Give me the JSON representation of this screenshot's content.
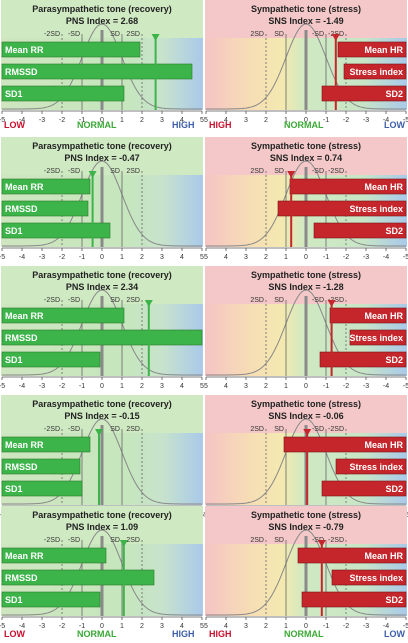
{
  "colors": {
    "pns_bg": "#cfe9c2",
    "sns_bg": "#f4c8c8",
    "bar_green": "#3cb44a",
    "bar_red": "#c4262b",
    "marker_green": "#3cb44a",
    "marker_red": "#c4262b",
    "curve": "#888888",
    "axis": "#555555"
  },
  "legend": {
    "left": {
      "low": "LOW",
      "normal": "NORMAL",
      "high": "HIGH"
    },
    "right": {
      "high": "HIGH",
      "normal": "NORMAL",
      "low": "LOW"
    }
  },
  "sd_labels": {
    "left": [
      "-2SD",
      "-SD",
      "SD",
      "2SD"
    ],
    "right": [
      "2SD",
      "SD",
      "-SD",
      "-2SD"
    ]
  },
  "chart_data": [
    {
      "type": "bar",
      "panel": "PNS",
      "title": "Parasympathetic tone (recovery)",
      "index_label": "PNS Index = 2.68",
      "index": 2.68,
      "categories": [
        "Mean RR",
        "RMSSD",
        "SD1"
      ],
      "values": [
        1.9,
        4.5,
        1.1
      ],
      "xlim": [
        -5,
        5
      ],
      "xticks": [
        -5,
        -4,
        -3,
        -2,
        -1,
        0,
        1,
        2,
        3,
        4,
        5
      ]
    },
    {
      "type": "bar",
      "panel": "SNS",
      "title": "Sympathetic tone (stress)",
      "index_label": "SNS Index = -1.49",
      "index": -1.49,
      "categories": [
        "Mean HR",
        "Stress index",
        "SD2"
      ],
      "values": [
        -1.6,
        -1.9,
        -0.8
      ],
      "xlim": [
        -5,
        5
      ],
      "xticks": [
        5,
        4,
        3,
        2,
        1,
        0,
        -1,
        -2,
        -3,
        -4,
        -5
      ]
    },
    {
      "type": "bar",
      "panel": "PNS",
      "title": "Parasympathetic tone (recovery)",
      "index_label": "PNS Index = -0.47",
      "index": -0.47,
      "categories": [
        "Mean RR",
        "RMSSD",
        "SD1"
      ],
      "values": [
        -0.6,
        -0.7,
        0.4
      ],
      "xlim": [
        -5,
        5
      ],
      "xticks": [
        -5,
        -4,
        -3,
        -2,
        -1,
        0,
        1,
        2,
        3,
        4,
        5
      ]
    },
    {
      "type": "bar",
      "panel": "SNS",
      "title": "Sympathetic tone (stress)",
      "index_label": "SNS Index = 0.74",
      "index": 0.74,
      "categories": [
        "Mean HR",
        "Stress index",
        "SD2"
      ],
      "values": [
        0.8,
        1.4,
        -0.4
      ],
      "xlim": [
        -5,
        5
      ],
      "xticks": [
        5,
        4,
        3,
        2,
        1,
        0,
        -1,
        -2,
        -3,
        -4,
        -5
      ]
    },
    {
      "type": "bar",
      "panel": "PNS",
      "title": "Parasympathetic tone (recovery)",
      "index_label": "PNS Index = 2.34",
      "index": 2.34,
      "categories": [
        "Mean RR",
        "RMSSD",
        "SD1"
      ],
      "values": [
        1.1,
        5.0,
        -0.1
      ],
      "xlim": [
        -5,
        5
      ],
      "xticks": [
        -5,
        -4,
        -3,
        -2,
        -1,
        0,
        1,
        2,
        3,
        4,
        5
      ]
    },
    {
      "type": "bar",
      "panel": "SNS",
      "title": "Sympathetic tone (stress)",
      "index_label": "SNS Index = -1.28",
      "index": -1.28,
      "categories": [
        "Mean HR",
        "Stress index",
        "SD2"
      ],
      "values": [
        -1.2,
        -2.2,
        -0.7
      ],
      "xlim": [
        -5,
        5
      ],
      "xticks": [
        5,
        4,
        3,
        2,
        1,
        0,
        -1,
        -2,
        -3,
        -4,
        -5
      ]
    },
    {
      "type": "bar",
      "panel": "PNS",
      "title": "Parasympathetic tone (recovery)",
      "index_label": "PNS Index = -0.15",
      "index": -0.15,
      "categories": [
        "Mean RR",
        "RMSSD",
        "SD1"
      ],
      "values": [
        -0.6,
        -1.1,
        -1.0
      ],
      "xlim": [
        -5,
        5
      ],
      "xticks": [
        -5,
        -4,
        -3,
        -2,
        -1,
        0,
        1,
        2,
        3,
        4,
        5
      ]
    },
    {
      "type": "bar",
      "panel": "SNS",
      "title": "Sympathetic tone (stress)",
      "index_label": "SNS Index = -0.06",
      "index": -0.06,
      "categories": [
        "Mean HR",
        "Stress index",
        "SD2"
      ],
      "values": [
        1.1,
        -1.5,
        -0.8
      ],
      "xlim": [
        -5,
        5
      ],
      "xticks": [
        5,
        4,
        3,
        2,
        1,
        0,
        -1,
        -2,
        -3,
        -4,
        -5
      ]
    },
    {
      "type": "bar",
      "panel": "PNS",
      "title": "Parasympathetic tone (recovery)",
      "index_label": "PNS Index = 1.09",
      "index": 1.09,
      "categories": [
        "Mean RR",
        "RMSSD",
        "SD1"
      ],
      "values": [
        0.2,
        2.6,
        -0.1
      ],
      "xlim": [
        -5,
        5
      ],
      "xticks": [
        -5,
        -4,
        -3,
        -2,
        -1,
        0,
        1,
        2,
        3,
        4,
        5
      ]
    },
    {
      "type": "bar",
      "panel": "SNS",
      "title": "Sympathetic tone (stress)",
      "index_label": "SNS Index = -0.79",
      "index": -0.79,
      "categories": [
        "Mean HR",
        "Stress index",
        "SD2"
      ],
      "values": [
        0.4,
        -1.3,
        0.2
      ],
      "xlim": [
        -5,
        5
      ],
      "xticks": [
        5,
        4,
        3,
        2,
        1,
        0,
        -1,
        -2,
        -3,
        -4,
        -5
      ]
    }
  ]
}
